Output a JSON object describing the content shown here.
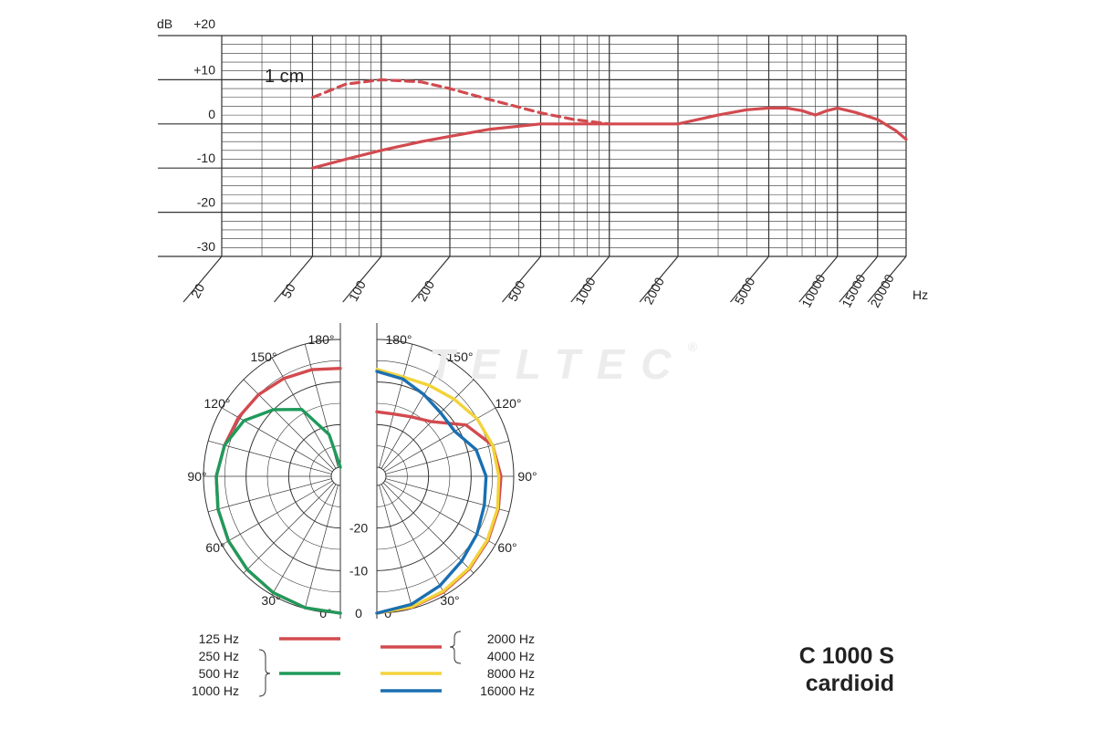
{
  "watermark": "TELTEC",
  "watermark_mark": "®",
  "model": {
    "name": "C 1000 S",
    "pattern": "cardioid"
  },
  "colors": {
    "red": "#d24a4f",
    "green": "#1f9a5a",
    "yellow": "#f2d33a",
    "blue": "#1a6fb0",
    "grid": "#333333"
  },
  "chart_data": [
    {
      "type": "line",
      "ylabel": "dB",
      "xlabel": "Hz",
      "xscale": "log",
      "xlim": [
        20,
        20000
      ],
      "ylim": [
        -30,
        20
      ],
      "yticks": [
        "+20",
        "+10",
        "0",
        "-10",
        "-20",
        "-30"
      ],
      "xticks": [
        "20",
        "50",
        "100",
        "200",
        "500",
        "1000",
        "2000",
        "5000",
        "10000",
        "15000",
        "20000"
      ],
      "grid": true,
      "annotation": "1 cm",
      "series": [
        {
          "name": "1 cm",
          "style": "dashed",
          "x": [
            50,
            70,
            100,
            150,
            200,
            300,
            500,
            700,
            1000
          ],
          "y": [
            6,
            9,
            10,
            9.5,
            8,
            5.5,
            2.5,
            1,
            0
          ]
        },
        {
          "style": "solid",
          "x": [
            50,
            70,
            100,
            150,
            200,
            300,
            500,
            1000,
            2000,
            3000,
            4000,
            5000,
            6000,
            7000,
            8000,
            9000,
            10000,
            12000,
            15000,
            18000,
            20000
          ],
          "y": [
            -10,
            -8,
            -6,
            -4,
            -2.8,
            -1.2,
            0,
            0,
            0,
            2,
            3.2,
            3.6,
            3.6,
            3,
            2,
            3,
            3.6,
            2.6,
            1,
            -1.5,
            -3.5
          ]
        }
      ]
    },
    {
      "type": "polar",
      "angle_labels": [
        "180°",
        "150°",
        "120°",
        "90°",
        "60°",
        "30°",
        "0°"
      ],
      "radial_labels": [
        "-20",
        "-10",
        "0"
      ],
      "rlim": [
        -30,
        0
      ],
      "legend": [
        {
          "labels": [
            "125 Hz"
          ],
          "color": "#d24a4f"
        },
        {
          "labels": [
            "250 Hz",
            "500 Hz",
            "1000 Hz"
          ],
          "color": "#1f9a5a"
        },
        {
          "labels": [
            "2000 Hz",
            "4000 Hz"
          ],
          "color": "#d24a4f"
        },
        {
          "labels": [
            "8000 Hz"
          ],
          "color": "#f2d33a"
        },
        {
          "labels": [
            "16000 Hz"
          ],
          "color": "#1a6fb0"
        }
      ],
      "series": [
        {
          "name": "125 Hz",
          "side": "left",
          "color": "#d24a4f",
          "angles": [
            0,
            15,
            30,
            45,
            60,
            75,
            90,
            105,
            120,
            135,
            150,
            165,
            180
          ],
          "levels": [
            0,
            -0.2,
            -0.6,
            -1.2,
            -1.8,
            -2.4,
            -3,
            -4,
            -4.5,
            -5,
            -5.6,
            -6.2,
            -6.8
          ]
        },
        {
          "name": "250 Hz / 500 Hz / 1000 Hz",
          "side": "left",
          "color": "#1f9a5a",
          "angles": [
            0,
            15,
            30,
            45,
            60,
            75,
            90,
            105,
            120,
            135,
            150,
            165,
            180
          ],
          "levels": [
            0,
            -0.2,
            -0.6,
            -1.2,
            -1.8,
            -2.4,
            -3,
            -4,
            -6,
            -10,
            -14,
            -22,
            -30
          ]
        },
        {
          "name": "2000 Hz / 4000 Hz",
          "side": "right",
          "color": "#d24a4f",
          "angles": [
            0,
            15,
            30,
            45,
            60,
            75,
            90,
            105,
            120,
            135,
            150,
            165,
            180
          ],
          "levels": [
            0,
            -0.3,
            -0.8,
            -1.4,
            -2,
            -2.6,
            -3,
            -4,
            -8,
            -14,
            -16,
            -17,
            -17
          ]
        },
        {
          "name": "8000 Hz",
          "side": "right",
          "color": "#f2d33a",
          "angles": [
            0,
            15,
            30,
            45,
            60,
            75,
            90,
            105,
            120,
            135,
            150,
            165,
            180
          ],
          "levels": [
            0,
            -0.4,
            -1,
            -1.6,
            -2.2,
            -2.8,
            -3.5,
            -4,
            -5,
            -6.5,
            -7.5,
            -8,
            -7
          ]
        },
        {
          "name": "16000 Hz",
          "side": "right",
          "color": "#1a6fb0",
          "angles": [
            0,
            15,
            30,
            45,
            60,
            75,
            90,
            105,
            120,
            135,
            150,
            165,
            180
          ],
          "levels": [
            0,
            -1,
            -2.5,
            -4,
            -5,
            -6,
            -6.5,
            -8,
            -11,
            -11,
            -10,
            -8.5,
            -7.5
          ]
        }
      ]
    }
  ]
}
